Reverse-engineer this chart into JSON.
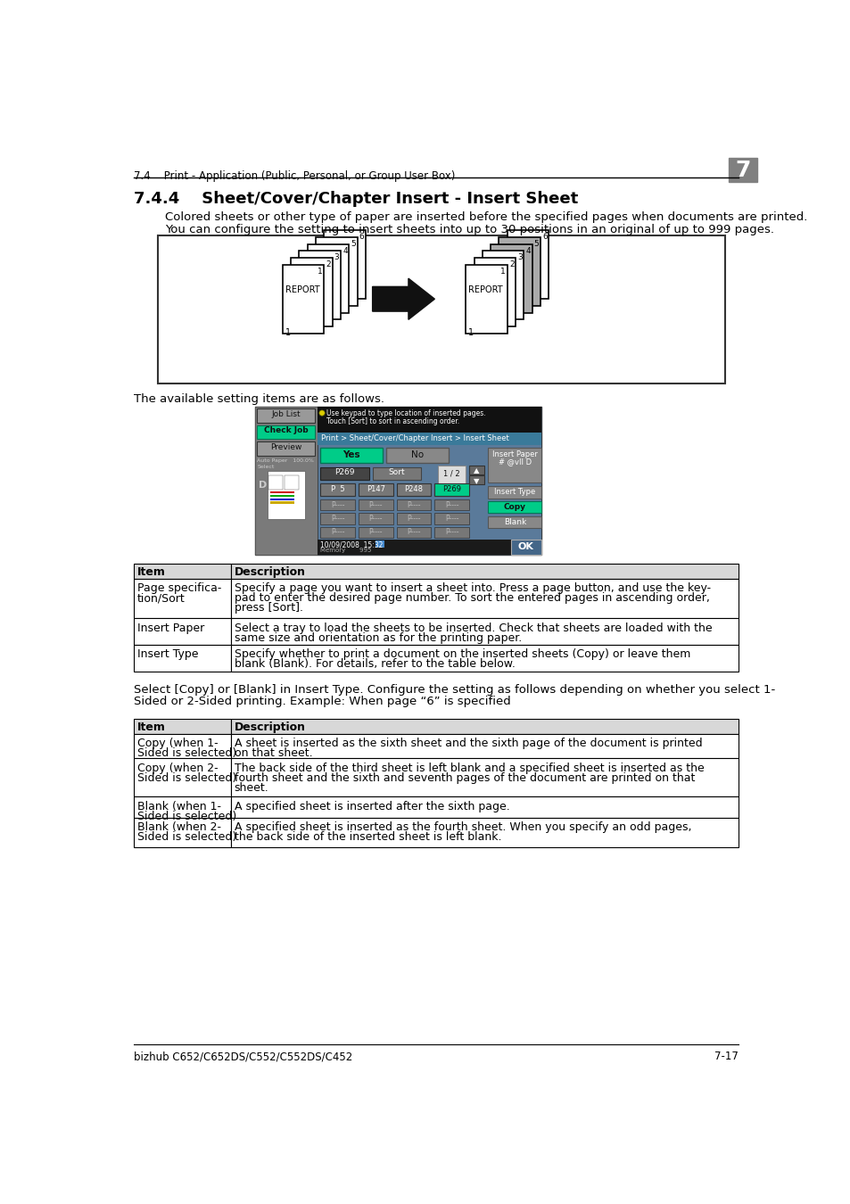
{
  "header_section": "7.4    Print - Application (Public, Personal, or Group User Box)",
  "chapter_num": "7",
  "section_title": "7.4.4    Sheet/Cover/Chapter Insert - Insert Sheet",
  "intro_line1": "Colored sheets or other type of paper are inserted before the specified pages when documents are printed.",
  "intro_line2": "You can configure the setting to insert sheets into up to 30 positions in an original of up to 999 pages.",
  "available_text": "The available setting items are as follows.",
  "table1_rows": [
    [
      "Page specifica-\ntion/Sort",
      "Specify a page you want to insert a sheet into. Press a page button, and use the key-\npad to enter the desired page number. To sort the entered pages in ascending order,\npress [Sort]."
    ],
    [
      "Insert Paper",
      "Select a tray to load the sheets to be inserted. Check that sheets are loaded with the\nsame size and orientation as for the printing paper."
    ],
    [
      "Insert Type",
      "Specify whether to print a document on the inserted sheets (Copy) or leave them\nblank (Blank). For details, refer to the table below."
    ]
  ],
  "select_line1": "Select [Copy] or [Blank] in Insert Type. Configure the setting as follows depending on whether you select 1-",
  "select_line2": "Sided or 2-Sided printing. Example: When page “6” is specified",
  "table2_rows": [
    [
      "Copy (when 1-\nSided is selected)",
      "A sheet is inserted as the sixth sheet and the sixth page of the document is printed\non that sheet."
    ],
    [
      "Copy (when 2-\nSided is selected)",
      "The back side of the third sheet is left blank and a specified sheet is inserted as the\nfourth sheet and the sixth and seventh pages of the document are printed on that\nsheet."
    ],
    [
      "Blank (when 1-\nSided is selected)",
      "A specified sheet is inserted after the sixth page."
    ],
    [
      "Blank (when 2-\nSided is selected)",
      "A specified sheet is inserted as the fourth sheet. When you specify an odd pages,\nthe back side of the inserted sheet is left blank."
    ]
  ],
  "footer_left": "bizhub C652/C652DS/C552/C552DS/C452",
  "footer_right": "7-17"
}
